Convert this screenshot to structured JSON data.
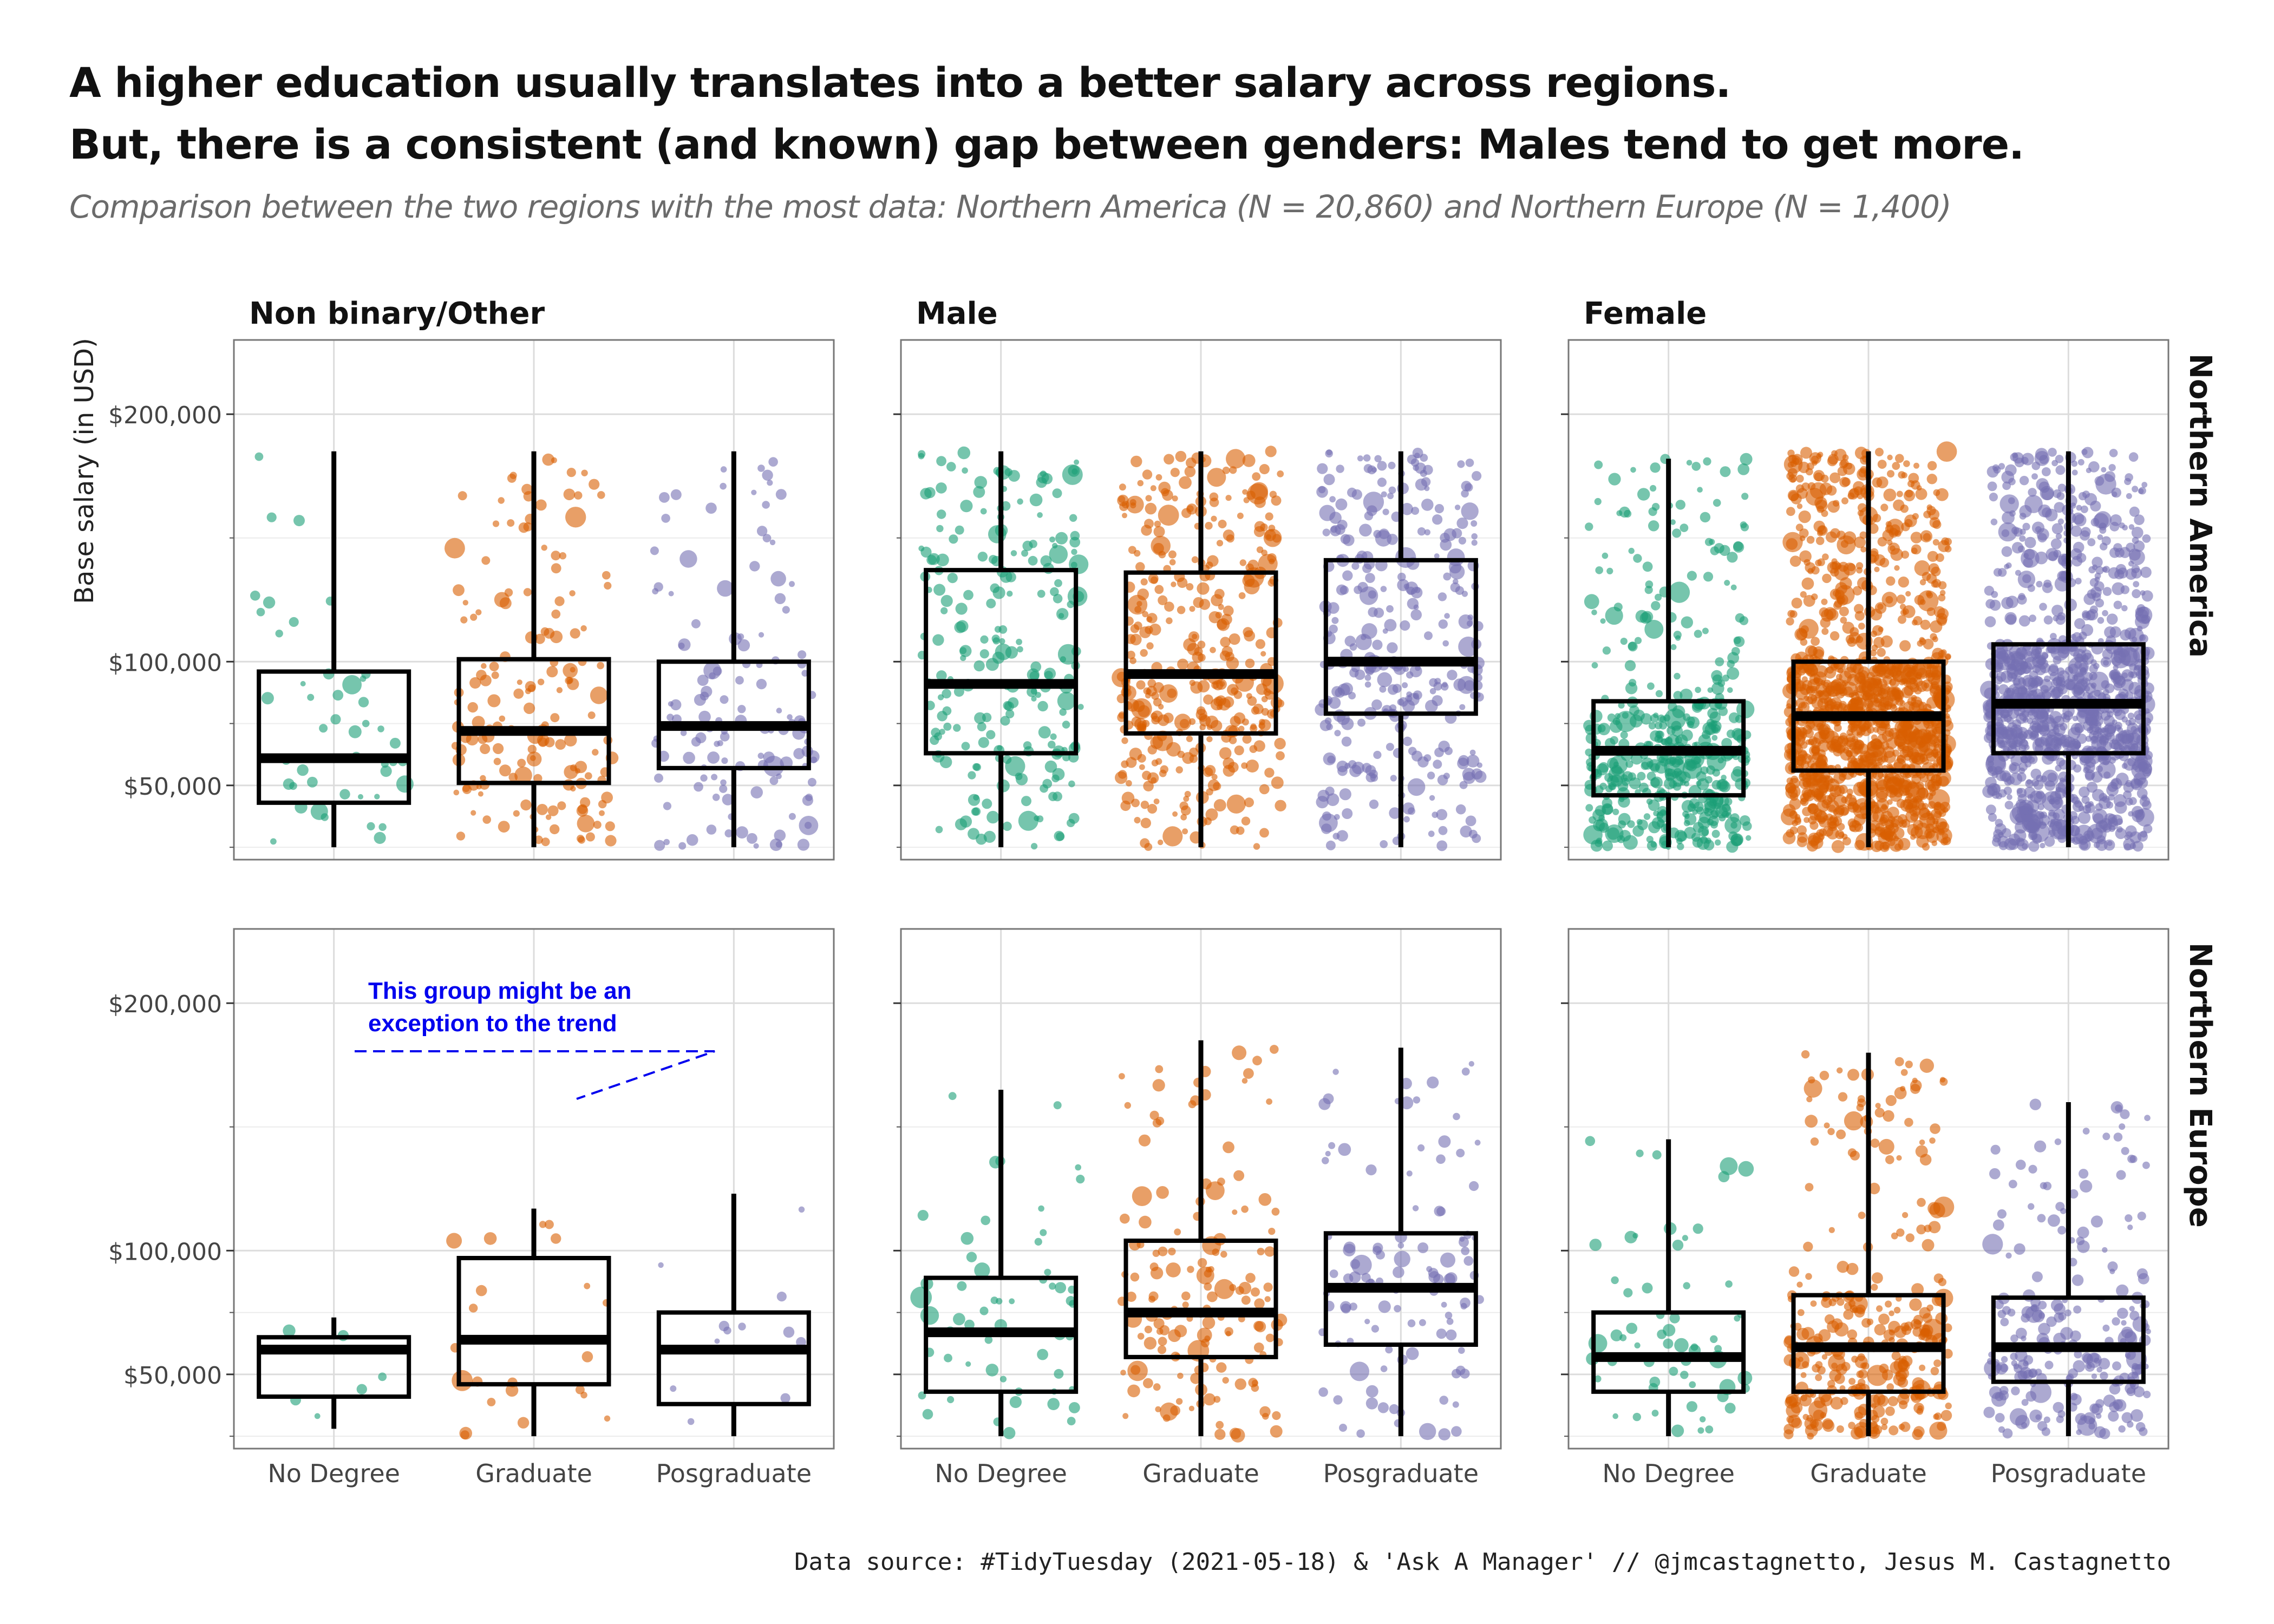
{
  "header": {
    "title_line1": "A higher education usually translates into a better salary across regions.",
    "title_line2": "But, there is a consistent (and known) gap between genders: Males tend to get more.",
    "subtitle": "Comparison between the two regions with the most data: Northern America (N = 20,860) and Northern Europe (N = 1,400)"
  },
  "caption": "Data source: #TidyTuesday (2021-05-18) & 'Ask A Manager' // @jmcastagnetto, Jesus M. Castagnetto",
  "annotation": {
    "line1": "This group might be an",
    "line2": "exception to the trend"
  },
  "colors": {
    "No Degree": "#1b9e77",
    "Graduate": "#d95f02",
    "Posgraduate": "#7570b3",
    "annotation": "#0000ee"
  },
  "chart_data": {
    "type": "boxplot",
    "ylabel": "Base salary (in USD)",
    "ylim": [
      20000,
      230000
    ],
    "yticks": [
      50000,
      100000,
      200000
    ],
    "ytick_labels": [
      "$50,000",
      "$100,000",
      "$200,000"
    ],
    "categories": [
      "No Degree",
      "Graduate",
      "Posgraduate"
    ],
    "columns": [
      "Non binary/Other",
      "Male",
      "Female"
    ],
    "rows": [
      "Northern America",
      "Northern Europe"
    ],
    "grid": true,
    "panels": [
      {
        "row": "Northern America",
        "column": "Non binary/Other",
        "boxes": [
          {
            "category": "No Degree",
            "whisker_low": 25000,
            "q1": 43000,
            "median": 61000,
            "q3": 96000,
            "whisker_high": 185000,
            "n": 45
          },
          {
            "category": "Graduate",
            "whisker_low": 25000,
            "q1": 51000,
            "median": 72000,
            "q3": 101000,
            "whisker_high": 185000,
            "n": 160
          },
          {
            "category": "Posgraduate",
            "whisker_low": 25000,
            "q1": 57000,
            "median": 74000,
            "q3": 100000,
            "whisker_high": 185000,
            "n": 130
          }
        ]
      },
      {
        "row": "Northern America",
        "column": "Male",
        "boxes": [
          {
            "category": "No Degree",
            "whisker_low": 25000,
            "q1": 63000,
            "median": 91000,
            "q3": 137000,
            "whisker_high": 185000,
            "n": 220
          },
          {
            "category": "Graduate",
            "whisker_low": 25000,
            "q1": 71000,
            "median": 95000,
            "q3": 136000,
            "whisker_high": 185000,
            "n": 380
          },
          {
            "category": "Posgraduate",
            "whisker_low": 25000,
            "q1": 79000,
            "median": 100000,
            "q3": 141000,
            "whisker_high": 185000,
            "n": 320
          }
        ]
      },
      {
        "row": "Northern America",
        "column": "Female",
        "boxes": [
          {
            "category": "No Degree",
            "whisker_low": 25000,
            "q1": 46000,
            "median": 64000,
            "q3": 84000,
            "whisker_high": 182000,
            "n": 450
          },
          {
            "category": "Graduate",
            "whisker_low": 25000,
            "q1": 56000,
            "median": 78000,
            "q3": 100000,
            "whisker_high": 185000,
            "n": 1300
          },
          {
            "category": "Posgraduate",
            "whisker_low": 25000,
            "q1": 63000,
            "median": 83000,
            "q3": 107000,
            "whisker_high": 185000,
            "n": 1100
          }
        ]
      },
      {
        "row": "Northern Europe",
        "column": "Non binary/Other",
        "boxes": [
          {
            "category": "No Degree",
            "whisker_low": 28000,
            "q1": 41000,
            "median": 60000,
            "q3": 65000,
            "whisker_high": 73000,
            "n": 7
          },
          {
            "category": "Graduate",
            "whisker_low": 25000,
            "q1": 46000,
            "median": 64000,
            "q3": 97000,
            "whisker_high": 117000,
            "n": 22
          },
          {
            "category": "Posgraduate",
            "whisker_low": 25000,
            "q1": 38000,
            "median": 60000,
            "q3": 75000,
            "whisker_high": 123000,
            "n": 12
          }
        ]
      },
      {
        "row": "Northern Europe",
        "column": "Male",
        "boxes": [
          {
            "category": "No Degree",
            "whisker_low": 25000,
            "q1": 43000,
            "median": 67000,
            "q3": 89000,
            "whisker_high": 165000,
            "n": 55
          },
          {
            "category": "Graduate",
            "whisker_low": 25000,
            "q1": 57000,
            "median": 75000,
            "q3": 104000,
            "whisker_high": 185000,
            "n": 150
          },
          {
            "category": "Posgraduate",
            "whisker_low": 25000,
            "q1": 62000,
            "median": 85000,
            "q3": 107000,
            "whisker_high": 182000,
            "n": 110
          }
        ]
      },
      {
        "row": "Northern Europe",
        "column": "Female",
        "boxes": [
          {
            "category": "No Degree",
            "whisker_low": 25000,
            "q1": 43000,
            "median": 57000,
            "q3": 75000,
            "whisker_high": 145000,
            "n": 60
          },
          {
            "category": "Graduate",
            "whisker_low": 25000,
            "q1": 43000,
            "median": 61000,
            "q3": 82000,
            "whisker_high": 180000,
            "n": 320
          },
          {
            "category": "Posgraduate",
            "whisker_low": 25000,
            "q1": 47000,
            "median": 61000,
            "q3": 81000,
            "whisker_high": 160000,
            "n": 230
          }
        ]
      }
    ]
  }
}
